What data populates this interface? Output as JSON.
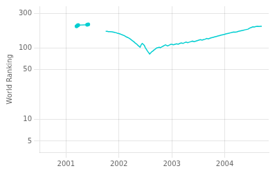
{
  "chart_data": {
    "type": "line",
    "ylabel": "World Ranking",
    "log": "y",
    "grid": true,
    "xlim": [
      2000.5,
      2004.83
    ],
    "xticks": [
      2001,
      2002,
      2003,
      2004
    ],
    "ylim": [
      3.5,
      380
    ],
    "yticks": [
      5,
      10,
      50,
      100,
      300
    ],
    "series": [
      {
        "color": "#00CED1",
        "marker": "circle",
        "x": [
          2001.2,
          2001.22,
          2001.23,
          2001.4,
          2001.42
        ],
        "values": [
          200,
          205,
          207,
          210,
          212
        ]
      },
      {
        "color": "#00CED1",
        "x": [
          2001.75,
          2001.78,
          2001.8,
          2001.83,
          2001.87,
          2001.9,
          2001.93,
          2001.95,
          2001.97,
          2002.0,
          2002.02,
          2002.04,
          2002.06,
          2002.08,
          2002.1,
          2002.12,
          2002.14,
          2002.16,
          2002.18,
          2002.2,
          2002.22,
          2002.24,
          2002.26,
          2002.28,
          2002.3,
          2002.32,
          2002.34,
          2002.36,
          2002.38,
          2002.4,
          2002.42,
          2002.44,
          2002.46,
          2002.48,
          2002.5,
          2002.52,
          2002.54,
          2002.56,
          2002.58,
          2002.6,
          2002.62,
          2002.64,
          2002.66,
          2002.68,
          2002.7,
          2002.72,
          2002.74,
          2002.76,
          2002.78,
          2002.8,
          2002.82,
          2002.84,
          2002.86,
          2002.88,
          2002.9,
          2002.92,
          2002.94,
          2002.96,
          2002.98,
          2003.0,
          2003.03,
          2003.06,
          2003.09,
          2003.12,
          2003.15,
          2003.18,
          2003.21,
          2003.24,
          2003.27,
          2003.3,
          2003.33,
          2003.36,
          2003.39,
          2003.42,
          2003.45,
          2003.48,
          2003.51,
          2003.54,
          2003.57,
          2003.6,
          2003.63,
          2003.66,
          2003.69,
          2003.72,
          2003.75,
          2003.78,
          2003.81,
          2003.84,
          2003.87,
          2003.9,
          2003.93,
          2003.96,
          2003.99,
          2004.02,
          2004.05,
          2004.08,
          2004.11,
          2004.14,
          2004.17,
          2004.2,
          2004.23,
          2004.26,
          2004.29,
          2004.32,
          2004.35,
          2004.38,
          2004.41,
          2004.44,
          2004.47,
          2004.5,
          2004.53,
          2004.56,
          2004.59,
          2004.62,
          2004.65,
          2004.68,
          2004.7
        ],
        "values": [
          170,
          170,
          168,
          168,
          167,
          165,
          163,
          162,
          160,
          158,
          156,
          154,
          152,
          150,
          148,
          145,
          142,
          140,
          138,
          135,
          132,
          128,
          125,
          122,
          118,
          115,
          112,
          108,
          105,
          102,
          110,
          115,
          112,
          108,
          100,
          95,
          90,
          86,
          82,
          85,
          88,
          90,
          93,
          95,
          98,
          100,
          100,
          102,
          100,
          102,
          104,
          106,
          108,
          110,
          108,
          106,
          108,
          110,
          112,
          112,
          110,
          112,
          114,
          112,
          115,
          117,
          115,
          118,
          120,
          118,
          120,
          122,
          124,
          122,
          124,
          126,
          128,
          130,
          128,
          130,
          132,
          135,
          133,
          136,
          138,
          140,
          142,
          144,
          146,
          148,
          150,
          152,
          154,
          156,
          158,
          160,
          162,
          164,
          166,
          165,
          167,
          170,
          172,
          174,
          176,
          178,
          180,
          182,
          188,
          192,
          196,
          195,
          198,
          200,
          198,
          200,
          200
        ]
      }
    ]
  }
}
